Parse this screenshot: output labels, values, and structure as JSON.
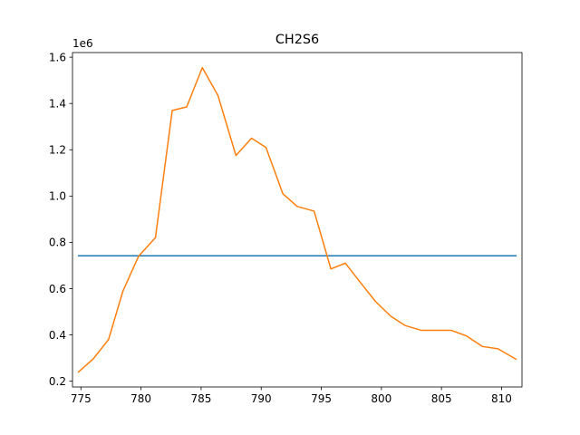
{
  "chart_data": {
    "type": "line",
    "title": "CH2S6",
    "xlabel": "",
    "ylabel": "",
    "y_offset_label": "1e6",
    "xlim": [
      774.3,
      811.7
    ],
    "ylim": [
      0.175,
      1.62
    ],
    "y_scale_multiplier": 1000000,
    "xticks": [
      775,
      780,
      785,
      790,
      795,
      800,
      805,
      810
    ],
    "xtick_labels": [
      "775",
      "780",
      "785",
      "790",
      "795",
      "800",
      "805",
      "810"
    ],
    "yticks": [
      0.2,
      0.4,
      0.6,
      0.8,
      1.0,
      1.2,
      1.4,
      1.6
    ],
    "ytick_labels": [
      "0.2",
      "0.4",
      "0.6",
      "0.8",
      "1.0",
      "1.2",
      "1.4",
      "1.6"
    ],
    "grid": false,
    "legend": "none",
    "series": [
      {
        "color": "#1f77b4",
        "x": [
          774.8,
          811.2
        ],
        "y": [
          0.742,
          0.742
        ]
      },
      {
        "color": "#ff7f0e",
        "x": [
          774.8,
          776.0,
          777.3,
          778.5,
          779.8,
          781.2,
          782.6,
          783.8,
          785.1,
          786.4,
          787.9,
          789.2,
          790.4,
          791.8,
          793.0,
          794.4,
          795.8,
          797.0,
          798.2,
          799.5,
          800.8,
          802.0,
          803.3,
          804.5,
          805.8,
          807.1,
          808.4,
          809.7,
          811.2
        ],
        "y": [
          0.24,
          0.295,
          0.38,
          0.59,
          0.74,
          0.82,
          1.37,
          1.385,
          1.555,
          1.435,
          1.175,
          1.25,
          1.21,
          1.01,
          0.955,
          0.935,
          0.685,
          0.71,
          0.63,
          0.545,
          0.48,
          0.44,
          0.42,
          0.42,
          0.42,
          0.395,
          0.35,
          0.34,
          0.295
        ]
      }
    ]
  }
}
